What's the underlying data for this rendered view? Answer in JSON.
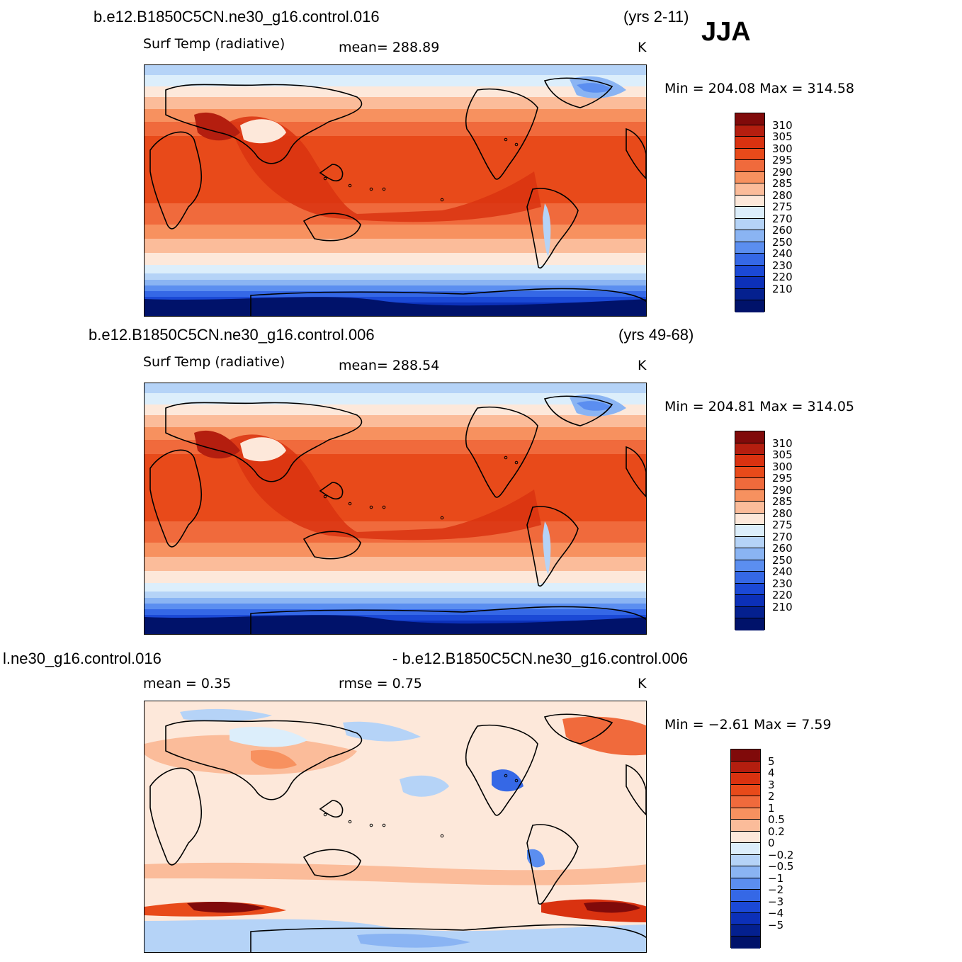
{
  "season": "JJA",
  "panels": [
    {
      "case": "b.e12.B1850C5CN.ne30_g16.control.016",
      "years": "(yrs 2-11)",
      "variable": "Surf Temp (radiative)",
      "stat_left": "mean=  288.89",
      "stat_right": "",
      "units": "K",
      "minmax": "Min  =  204.08  Max  =  314.58",
      "colorbar": {
        "colors": [
          "#800a0a",
          "#b41e0f",
          "#d93210",
          "#e84a1a",
          "#f06a3c",
          "#f7915f",
          "#fbbc9a",
          "#fde8da",
          "#dceefb",
          "#b5d3f7",
          "#8ab4f3",
          "#5b8ef0",
          "#3568e6",
          "#1b49d6",
          "#0c30b8",
          "#04208f",
          "#00126a"
        ],
        "labels": [
          "310",
          "305",
          "300",
          "295",
          "290",
          "285",
          "280",
          "275",
          "270",
          "260",
          "250",
          "240",
          "230",
          "220",
          "210"
        ]
      }
    },
    {
      "case": "b.e12.B1850C5CN.ne30_g16.control.006",
      "years": "(yrs 49-68)",
      "variable": "Surf Temp (radiative)",
      "stat_left": "mean=  288.54",
      "stat_right": "",
      "units": "K",
      "minmax": "Min  =  204.81  Max  =  314.05",
      "colorbar": {
        "colors": [
          "#800a0a",
          "#b41e0f",
          "#d93210",
          "#e84a1a",
          "#f06a3c",
          "#f7915f",
          "#fbbc9a",
          "#fde8da",
          "#dceefb",
          "#b5d3f7",
          "#8ab4f3",
          "#5b8ef0",
          "#3568e6",
          "#1b49d6",
          "#0c30b8",
          "#04208f",
          "#00126a"
        ],
        "labels": [
          "310",
          "305",
          "300",
          "295",
          "290",
          "285",
          "280",
          "275",
          "270",
          "260",
          "250",
          "240",
          "230",
          "220",
          "210"
        ]
      }
    },
    {
      "case_left": "l.ne30_g16.control.016",
      "case_right": "- b.e12.B1850C5CN.ne30_g16.control.006",
      "variable": "mean  =     0.35",
      "stat_right": "rmse  =     0.75",
      "units": "K",
      "minmax": "Min  =    −2.61  Max  =       7.59",
      "colorbar": {
        "colors": [
          "#800a0a",
          "#b41e0f",
          "#d93210",
          "#e84a1a",
          "#f06a3c",
          "#f7915f",
          "#fbbc9a",
          "#fde8da",
          "#dceefb",
          "#b5d3f7",
          "#8ab4f3",
          "#5b8ef0",
          "#3568e6",
          "#1b49d6",
          "#0c30b8",
          "#04208f",
          "#00126a"
        ],
        "labels": [
          "5",
          "4",
          "3",
          "2",
          "1",
          "0.5",
          "0.2",
          "0",
          "−0.2",
          "−0.5",
          "−1",
          "−2",
          "−3",
          "−4",
          "−5"
        ]
      }
    }
  ]
}
